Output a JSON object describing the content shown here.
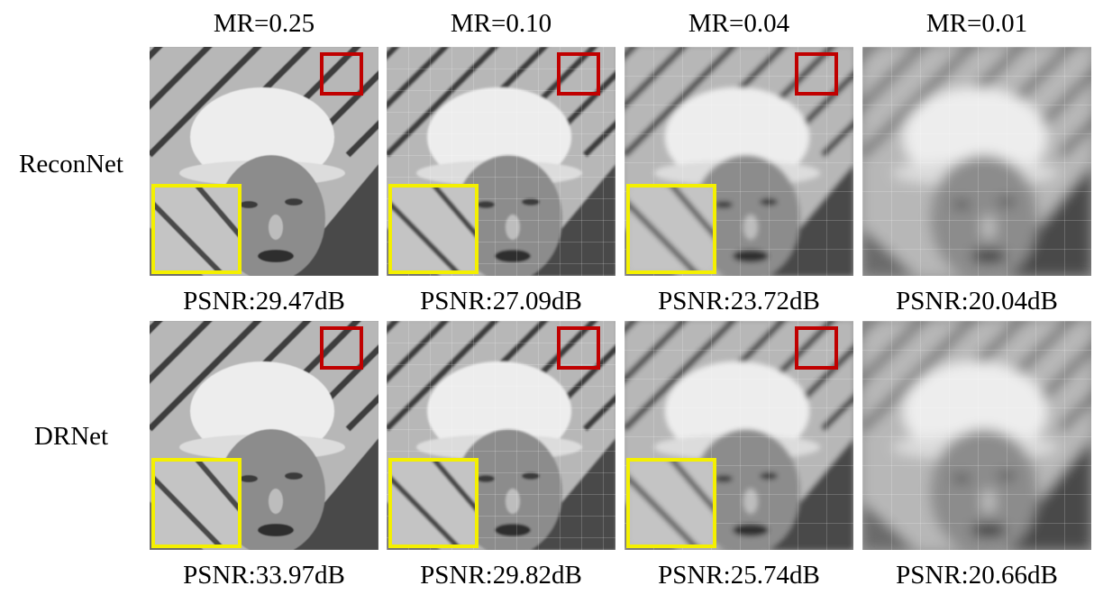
{
  "columns": [
    {
      "header": "MR=0.25",
      "grain": 0,
      "block": 0
    },
    {
      "header": "MR=0.10",
      "grain": 1,
      "block": 24
    },
    {
      "header": "MR=0.04",
      "grain": 2,
      "block": 32
    },
    {
      "header": "MR=0.01",
      "grain": 3,
      "block": 32
    }
  ],
  "rows": [
    {
      "label": "ReconNet",
      "psnr": [
        "PSNR:29.47dB",
        "PSNR:27.09dB",
        "PSNR:23.72dB",
        "PSNR:20.04dB"
      ]
    },
    {
      "label": "DRNet",
      "psnr": [
        "PSNR:33.97dB",
        "PSNR:29.82dB",
        "PSNR:25.74dB",
        "PSNR:20.66dB"
      ]
    }
  ],
  "colors": {
    "roi_box": "#c00000",
    "inset_box": "#f4f000"
  }
}
